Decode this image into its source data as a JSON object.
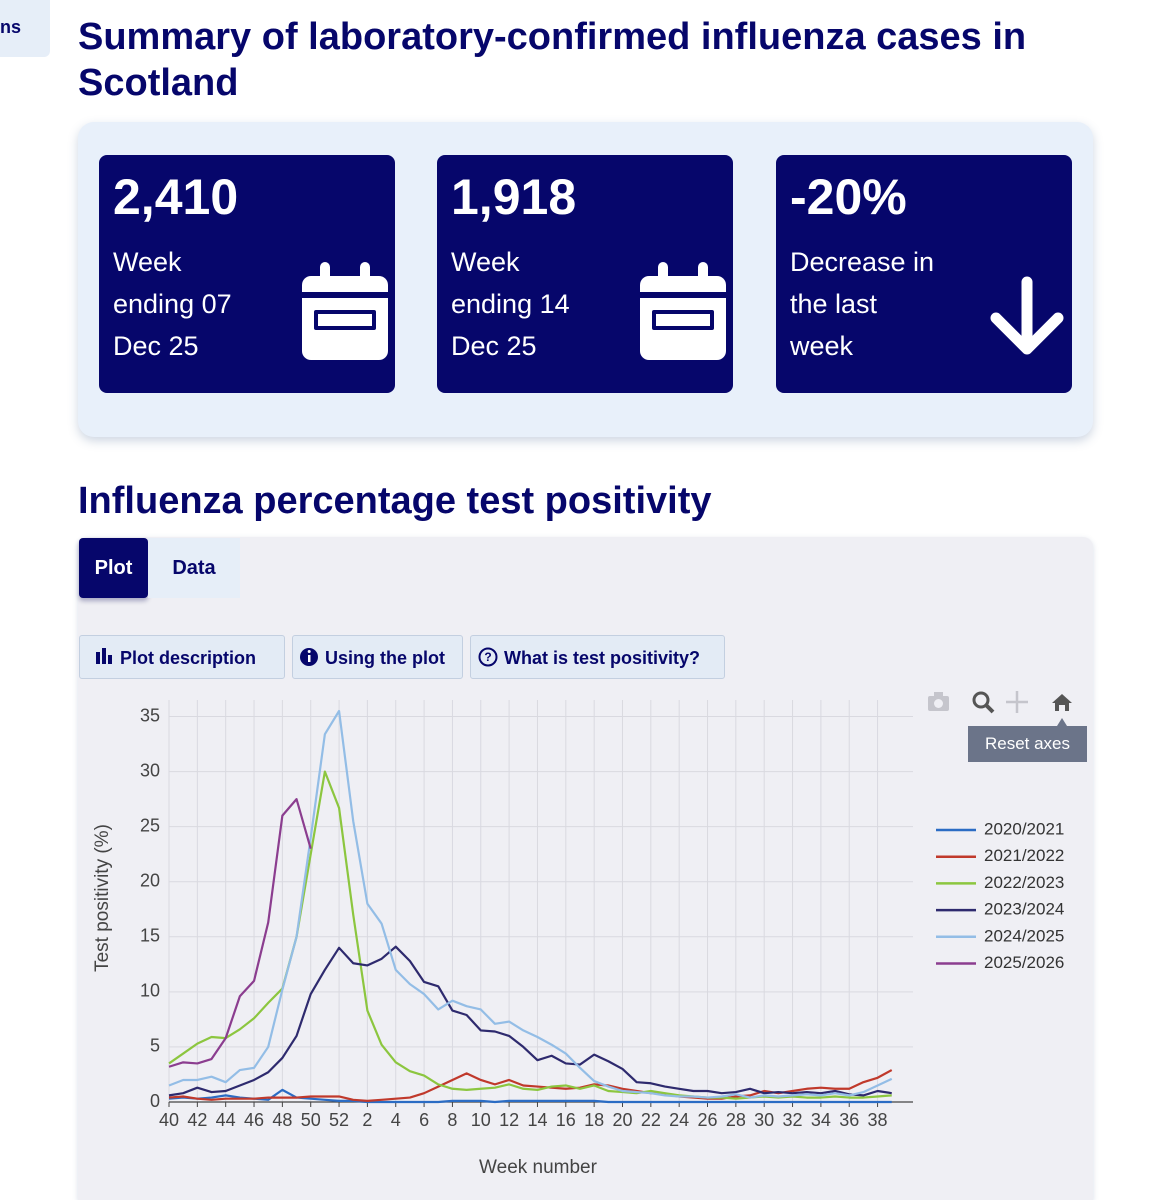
{
  "nav": {
    "label": "ns"
  },
  "header": {
    "title": "Summary of laboratory-confirmed influenza cases in Scotland"
  },
  "cards": [
    {
      "value": "2,410",
      "lines": [
        "Week",
        "ending 07",
        "Dec 25"
      ]
    },
    {
      "value": "1,918",
      "lines": [
        "Week",
        "ending 14",
        "Dec 25"
      ]
    },
    {
      "value": "-20%",
      "lines": [
        "Decrease in",
        "the last",
        "week"
      ]
    }
  ],
  "section": {
    "title": "Influenza percentage test positivity"
  },
  "tabs": [
    "Plot",
    "Data"
  ],
  "buttons": [
    "Plot description",
    "Using the plot",
    "What is test positivity?"
  ],
  "tooltip": "Reset axes",
  "chart_data": {
    "type": "line",
    "xlabel": "Week number",
    "ylabel": "Test positivity (%)",
    "categories": [
      "40",
      null,
      "42",
      null,
      "44",
      null,
      "46",
      null,
      "48",
      null,
      "50",
      null,
      "52",
      null,
      "2",
      null,
      "4",
      null,
      "6",
      null,
      "8",
      null,
      "10",
      null,
      "12",
      null,
      "14",
      null,
      "16",
      null,
      "18",
      null,
      "20",
      null,
      "22",
      null,
      "24",
      null,
      "26",
      null,
      "28",
      null,
      "30",
      null,
      "32",
      null,
      "34",
      null,
      "36",
      null,
      "38",
      null
    ],
    "series": [
      {
        "name": "2020/2021",
        "color": "#2b6cc4",
        "values": [
          0.3,
          0.4,
          0.3,
          0.4,
          0.6,
          0.4,
          0.3,
          0.2,
          1.1,
          0.4,
          0.3,
          0.2,
          0.1,
          0.1,
          0,
          0,
          0,
          0,
          0,
          0,
          0.1,
          0.1,
          0.1,
          0,
          0.1,
          0.1,
          0.1,
          0.1,
          0.1,
          0.1,
          0.1,
          0,
          0,
          0,
          0,
          0,
          0,
          0,
          0,
          0,
          0,
          0,
          0,
          0,
          0,
          0,
          0,
          0,
          0,
          0,
          0,
          0
        ]
      },
      {
        "name": "2021/2022",
        "color": "#c0392b",
        "values": [
          0.4,
          0.5,
          0.3,
          0.2,
          0.3,
          0.3,
          0.3,
          0.4,
          0.4,
          0.4,
          0.5,
          0.5,
          0.5,
          0.2,
          0.1,
          0.2,
          0.3,
          0.4,
          0.8,
          1.4,
          2.0,
          2.6,
          2.0,
          1.6,
          2.0,
          1.5,
          1.4,
          1.3,
          1.2,
          1.3,
          1.6,
          1.5,
          1.2,
          1.0,
          0.8,
          0.7,
          0.5,
          0.4,
          0.3,
          0.3,
          0.5,
          0.6,
          1.0,
          0.8,
          1.0,
          1.2,
          1.3,
          1.2,
          1.2,
          1.8,
          2.2,
          2.9
        ]
      },
      {
        "name": "2022/2023",
        "color": "#8cc63f",
        "values": [
          3.5,
          4.4,
          5.3,
          5.9,
          5.8,
          6.6,
          7.6,
          9.0,
          10.3,
          15.0,
          22.5,
          30.0,
          26.7,
          17.0,
          8.3,
          5.2,
          3.6,
          2.8,
          2.4,
          1.6,
          1.2,
          1.1,
          1.2,
          1.3,
          1.6,
          1.2,
          1.1,
          1.4,
          1.5,
          1.2,
          1.5,
          1.0,
          0.9,
          0.8,
          1.0,
          0.8,
          0.6,
          0.5,
          0.4,
          0.4,
          0.3,
          0.4,
          0.5,
          0.4,
          0.5,
          0.4,
          0.4,
          0.5,
          0.4,
          0.4,
          0.5,
          0.6
        ]
      },
      {
        "name": "2023/2024",
        "color": "#2e2a6e",
        "values": [
          0.6,
          0.8,
          1.3,
          0.9,
          1.0,
          1.5,
          2.0,
          2.7,
          4.0,
          6.0,
          9.8,
          12.0,
          14.0,
          12.6,
          12.4,
          13.0,
          14.1,
          12.8,
          10.9,
          10.5,
          8.3,
          7.9,
          6.5,
          6.4,
          6.0,
          5.0,
          3.8,
          4.2,
          3.5,
          3.4,
          4.3,
          3.7,
          3.0,
          1.8,
          1.7,
          1.4,
          1.2,
          1.0,
          1.0,
          0.8,
          0.9,
          1.2,
          0.8,
          0.9,
          0.8,
          0.9,
          0.8,
          1.0,
          0.7,
          0.6,
          1.0,
          0.8
        ]
      },
      {
        "name": "2024/2025",
        "color": "#93bde6",
        "values": [
          1.5,
          2.0,
          2.0,
          2.3,
          1.8,
          2.9,
          3.1,
          5.0,
          10.2,
          15.0,
          24.0,
          33.4,
          35.5,
          25.5,
          18.0,
          16.2,
          12.0,
          10.7,
          9.8,
          8.4,
          9.2,
          8.7,
          8.4,
          7.1,
          7.3,
          6.5,
          5.9,
          5.2,
          4.4,
          3.1,
          1.9,
          1.4,
          1.0,
          0.9,
          0.8,
          0.6,
          0.5,
          0.5,
          0.4,
          0.5,
          0.7,
          0.4,
          0.6,
          0.5,
          0.6,
          0.7,
          0.6,
          0.8,
          0.6,
          0.9,
          1.5,
          2.1
        ]
      },
      {
        "name": "2025/2026",
        "color": "#8b3d8f",
        "values": [
          3.2,
          3.6,
          3.5,
          3.9,
          5.8,
          9.6,
          11.0,
          16.3,
          26.0,
          27.5,
          23.0,
          null,
          null,
          null,
          null,
          null,
          null,
          null,
          null,
          null,
          null,
          null,
          null,
          null,
          null,
          null,
          null,
          null,
          null,
          null,
          null,
          null,
          null,
          null,
          null,
          null,
          null,
          null,
          null,
          null,
          null,
          null,
          null,
          null,
          null,
          null,
          null,
          null,
          null,
          null,
          null,
          null
        ]
      }
    ],
    "ylim": [
      0,
      36.5
    ],
    "yticks": [
      0,
      5,
      10,
      15,
      20,
      25,
      30,
      35
    ],
    "grid": true,
    "legend": "right"
  }
}
